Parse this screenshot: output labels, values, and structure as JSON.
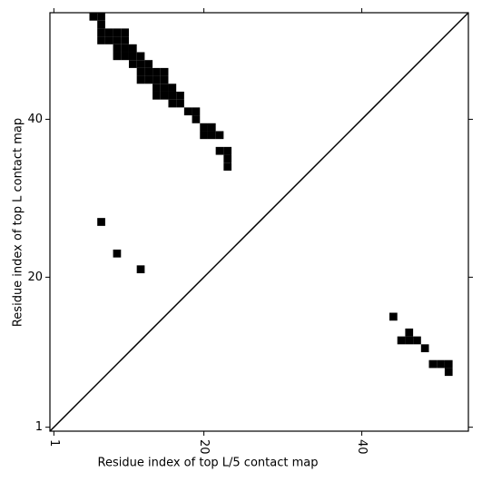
{
  "chart_data": {
    "type": "scatter",
    "marker": "square",
    "color": "#000000",
    "xlabel": "Residue index of top L/5 contact map",
    "ylabel": "Residue index of top L contact map",
    "x": [
      6,
      7,
      7,
      7,
      8,
      9,
      10,
      7,
      8,
      9,
      10,
      9,
      10,
      11,
      9,
      10,
      11,
      12,
      11,
      12,
      13,
      12,
      13,
      14,
      15,
      12,
      13,
      14,
      15,
      14,
      15,
      16,
      14,
      15,
      16,
      17,
      16,
      17,
      18,
      19,
      19,
      20,
      21,
      20,
      21,
      22,
      22,
      23,
      23,
      23,
      7,
      9,
      12,
      44,
      46,
      45,
      46,
      47,
      48,
      49,
      50,
      51,
      51
    ],
    "y": [
      53,
      53,
      52,
      51,
      51,
      51,
      51,
      50,
      50,
      50,
      50,
      49,
      49,
      49,
      48,
      48,
      48,
      48,
      47,
      47,
      47,
      46,
      46,
      46,
      46,
      45,
      45,
      45,
      45,
      44,
      44,
      44,
      43,
      43,
      43,
      43,
      42,
      42,
      41,
      41,
      40,
      39,
      39,
      38,
      38,
      38,
      36,
      36,
      35,
      34,
      27,
      23,
      21,
      15,
      13,
      12,
      12,
      12,
      11,
      9,
      9,
      9,
      8
    ],
    "xlim": [
      0.5,
      53.5
    ],
    "ylim": [
      0.5,
      53.5
    ],
    "xticks": [
      1,
      20,
      40
    ],
    "yticks": [
      1,
      20,
      40
    ],
    "diagonal": true,
    "grid": false
  }
}
